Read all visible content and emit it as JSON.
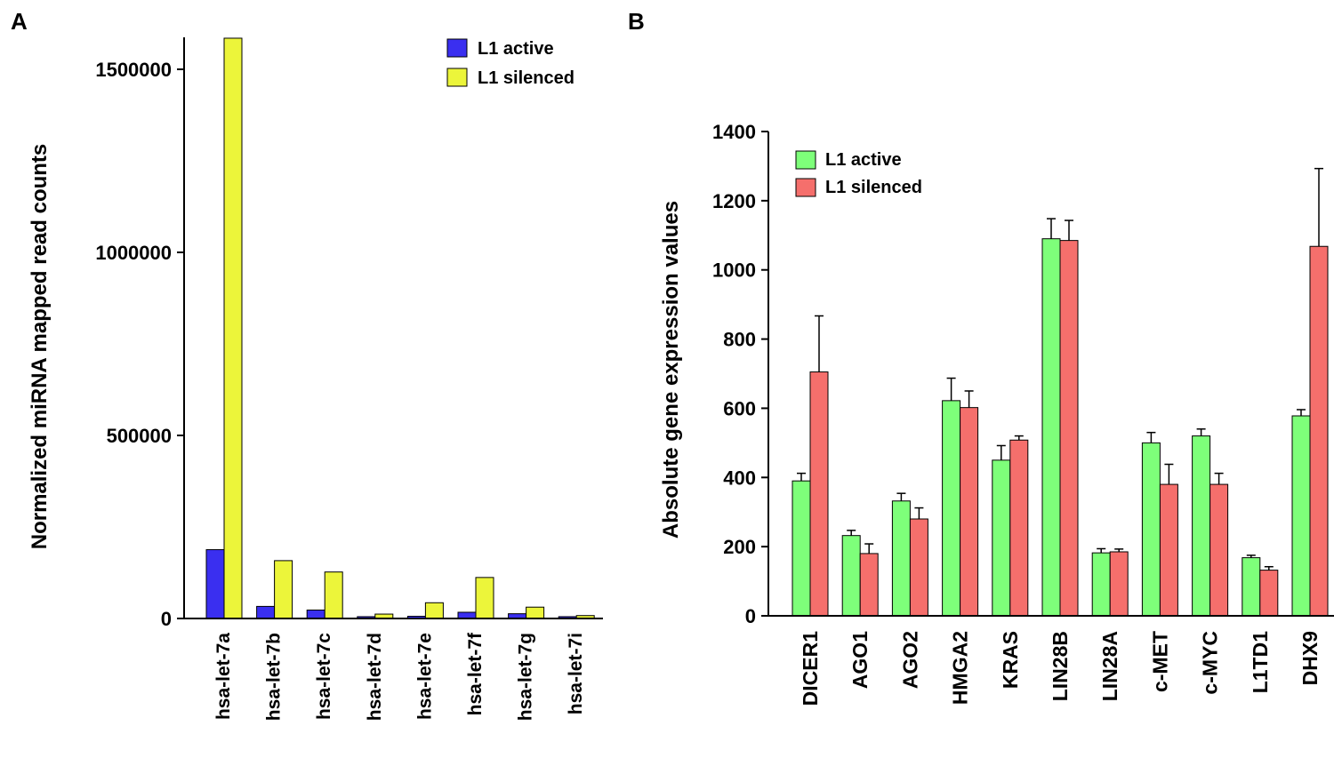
{
  "colors": {
    "a_active": "#3a2ff0",
    "a_silenced": "#ecf53a",
    "b_active": "#7eff7a",
    "b_silenced": "#f56f6c"
  },
  "chart_data": [
    {
      "panel": "A",
      "type": "bar",
      "title": "",
      "xlabel": "",
      "ylabel": "Normalized miRNA mapped read counts",
      "ylim": [
        0,
        1600000
      ],
      "yticks": [
        0,
        500000,
        1000000,
        1500000
      ],
      "ytick_labels": [
        "0",
        "500000",
        "1000000",
        "1500000"
      ],
      "categories": [
        "hsa-let-7a",
        "hsa-let-7b",
        "hsa-let-7c",
        "hsa-let-7d",
        "hsa-let-7e",
        "hsa-let-7f",
        "hsa-let-7g",
        "hsa-let-7i"
      ],
      "series": [
        {
          "name": "L1 active",
          "values": [
            188000,
            33000,
            23000,
            5000,
            6000,
            17000,
            13000,
            5000
          ]
        },
        {
          "name": "L1 silenced",
          "values": [
            1585000,
            158000,
            127000,
            12000,
            43000,
            112000,
            31000,
            8000
          ]
        }
      ],
      "legend": "top-right"
    },
    {
      "panel": "B",
      "type": "bar",
      "title": "",
      "xlabel": "",
      "ylabel": "Absolute gene expression values",
      "ylim": [
        0,
        1400
      ],
      "yticks": [
        0,
        200,
        400,
        600,
        800,
        1000,
        1200,
        1400
      ],
      "ytick_labels": [
        "0",
        "200",
        "400",
        "600",
        "800",
        "1000",
        "1200",
        "1400"
      ],
      "categories": [
        "DICER1",
        "AGO1",
        "AGO2",
        "HMGA2",
        "KRAS",
        "LIN28B",
        "LIN28A",
        "c-MET",
        "c-MYC",
        "L1TD1",
        "DHX9"
      ],
      "series": [
        {
          "name": "L1 active",
          "values": [
            390,
            232,
            332,
            622,
            450,
            1090,
            182,
            500,
            520,
            168,
            578
          ],
          "errors": [
            22,
            15,
            22,
            65,
            42,
            58,
            12,
            30,
            20,
            7,
            18
          ]
        },
        {
          "name": "L1 silenced",
          "values": [
            705,
            180,
            280,
            602,
            508,
            1085,
            185,
            380,
            380,
            132,
            1068
          ],
          "errors": [
            162,
            28,
            32,
            48,
            12,
            58,
            8,
            58,
            32,
            10,
            225
          ]
        }
      ],
      "legend": "top-left"
    }
  ]
}
